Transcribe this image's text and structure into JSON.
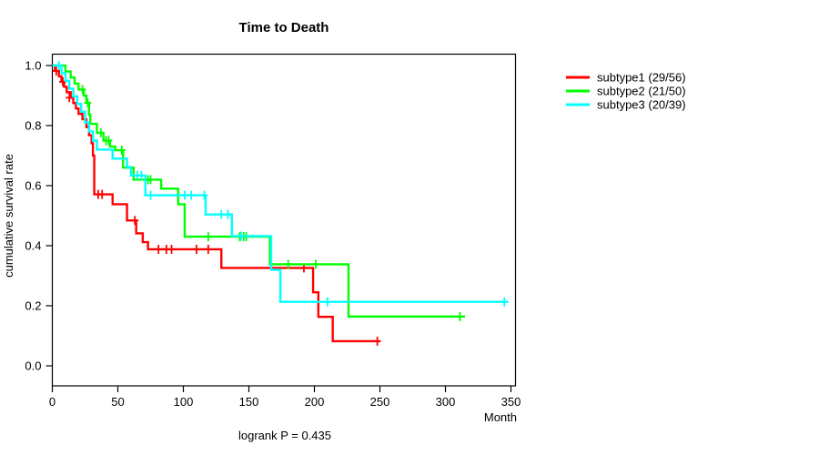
{
  "window": {
    "background": "#ffffff"
  },
  "chart_data": {
    "type": "line",
    "variant": "kaplan-meier-step",
    "title": "Time to Death",
    "xlabel": "Month",
    "ylabel": "cumulative survival rate",
    "annotation": "logrank P = 0.435",
    "xlim": [
      0,
      360
    ],
    "ylim": [
      0.0,
      1.0
    ],
    "xticks": [
      0,
      50,
      100,
      150,
      200,
      250,
      300,
      350
    ],
    "yticks": [
      "0.0",
      "0.2",
      "0.4",
      "0.6",
      "0.8",
      "1.0"
    ],
    "grid": false,
    "legend_position": "right-outside",
    "axis_color": "#000000",
    "series": [
      {
        "name": "subtype1 (29/56)",
        "color": "#ff0000",
        "n": 56,
        "events": 29,
        "steps": [
          [
            0,
            1.0
          ],
          [
            2,
            0.982
          ],
          [
            5,
            0.964
          ],
          [
            7,
            0.946
          ],
          [
            9,
            0.929
          ],
          [
            11,
            0.911
          ],
          [
            14,
            0.893
          ],
          [
            16,
            0.875
          ],
          [
            18,
            0.857
          ],
          [
            20,
            0.839
          ],
          [
            23,
            0.821
          ],
          [
            26,
            0.795
          ],
          [
            28,
            0.768
          ],
          [
            30,
            0.741
          ],
          [
            31,
            0.7
          ],
          [
            32,
            0.571
          ],
          [
            46,
            0.538
          ],
          [
            57,
            0.484
          ],
          [
            64,
            0.441
          ],
          [
            69,
            0.412
          ],
          [
            73,
            0.388
          ],
          [
            129,
            0.326
          ],
          [
            199,
            0.245
          ],
          [
            203,
            0.163
          ],
          [
            214,
            0.082
          ],
          [
            250,
            0.082
          ]
        ],
        "censors": [
          [
            3,
            0.982
          ],
          [
            8,
            0.946
          ],
          [
            13,
            0.893
          ],
          [
            35,
            0.571
          ],
          [
            38,
            0.571
          ],
          [
            63,
            0.484
          ],
          [
            81,
            0.388
          ],
          [
            87,
            0.388
          ],
          [
            91,
            0.388
          ],
          [
            110,
            0.388
          ],
          [
            119,
            0.388
          ],
          [
            192,
            0.326
          ],
          [
            248,
            0.082
          ]
        ]
      },
      {
        "name": "subtype2 (21/50)",
        "color": "#00ff00",
        "n": 50,
        "events": 21,
        "steps": [
          [
            0,
            1.0
          ],
          [
            10,
            0.98
          ],
          [
            14,
            0.96
          ],
          [
            17,
            0.94
          ],
          [
            20,
            0.92
          ],
          [
            24,
            0.9
          ],
          [
            26,
            0.876
          ],
          [
            28,
            0.836
          ],
          [
            29,
            0.806
          ],
          [
            34,
            0.776
          ],
          [
            39,
            0.75
          ],
          [
            44,
            0.73
          ],
          [
            48,
            0.718
          ],
          [
            54,
            0.66
          ],
          [
            62,
            0.62
          ],
          [
            83,
            0.59
          ],
          [
            96,
            0.538
          ],
          [
            101,
            0.43
          ],
          [
            166,
            0.338
          ],
          [
            226,
            0.164
          ],
          [
            315,
            0.164
          ]
        ],
        "censors": [
          [
            23,
            0.92
          ],
          [
            27,
            0.876
          ],
          [
            37,
            0.776
          ],
          [
            41,
            0.75
          ],
          [
            43,
            0.75
          ],
          [
            53,
            0.718
          ],
          [
            73,
            0.62
          ],
          [
            75,
            0.62
          ],
          [
            119,
            0.43
          ],
          [
            143,
            0.43
          ],
          [
            146,
            0.43
          ],
          [
            148,
            0.43
          ],
          [
            180,
            0.338
          ],
          [
            201,
            0.338
          ],
          [
            311,
            0.164
          ]
        ]
      },
      {
        "name": "subtype3 (20/39)",
        "color": "#00ffff",
        "n": 39,
        "events": 20,
        "steps": [
          [
            0,
            1.0
          ],
          [
            7,
            0.974
          ],
          [
            10,
            0.949
          ],
          [
            13,
            0.923
          ],
          [
            16,
            0.897
          ],
          [
            19,
            0.872
          ],
          [
            22,
            0.846
          ],
          [
            25,
            0.81
          ],
          [
            28,
            0.78
          ],
          [
            31,
            0.75
          ],
          [
            34,
            0.72
          ],
          [
            46,
            0.69
          ],
          [
            57,
            0.662
          ],
          [
            60,
            0.634
          ],
          [
            71,
            0.568
          ],
          [
            117,
            0.504
          ],
          [
            137,
            0.432
          ],
          [
            167,
            0.32
          ],
          [
            174,
            0.213
          ],
          [
            348,
            0.213
          ]
        ],
        "censors": [
          [
            5,
            1.0
          ],
          [
            65,
            0.634
          ],
          [
            68,
            0.634
          ],
          [
            75,
            0.568
          ],
          [
            101,
            0.568
          ],
          [
            106,
            0.568
          ],
          [
            116,
            0.568
          ],
          [
            129,
            0.504
          ],
          [
            134,
            0.504
          ],
          [
            144,
            0.432
          ],
          [
            210,
            0.213
          ],
          [
            345,
            0.213
          ]
        ]
      }
    ]
  },
  "legend": {
    "items": [
      {
        "label": "subtype1 (29/56)",
        "color": "#ff0000"
      },
      {
        "label": "subtype2 (21/50)",
        "color": "#00ff00"
      },
      {
        "label": "subtype3 (20/39)",
        "color": "#00ffff"
      }
    ]
  }
}
